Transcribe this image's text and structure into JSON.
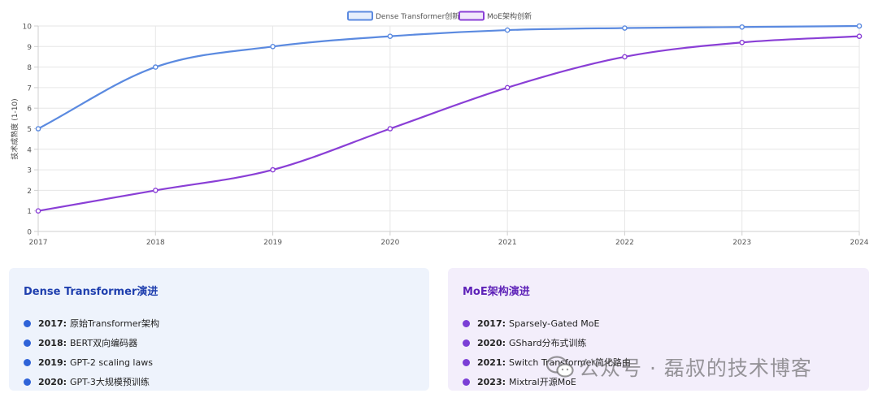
{
  "chart_data": {
    "type": "line",
    "ylabel": "技术成熟度 (1-10)",
    "xlabel": "",
    "x": [
      "2017",
      "2018",
      "2019",
      "2020",
      "2021",
      "2022",
      "2023",
      "2024"
    ],
    "ylim": [
      0,
      10
    ],
    "yticks": [
      0,
      1,
      2,
      3,
      4,
      5,
      6,
      7,
      8,
      9,
      10
    ],
    "grid": true,
    "legend_position": "top-center",
    "series": [
      {
        "name": "Dense Transformer创新",
        "color": "#5b8ae0",
        "values": [
          5,
          8,
          9,
          9.5,
          9.8,
          9.9,
          9.95,
          10
        ]
      },
      {
        "name": "MoE架构创新",
        "color": "#8a3fd6",
        "values": [
          1,
          2,
          3,
          5,
          7,
          8.5,
          9.2,
          9.5
        ]
      }
    ]
  },
  "cards": {
    "dense": {
      "title": "Dense Transformer演进",
      "items": [
        {
          "year": "2017:",
          "text": "原始Transformer架构"
        },
        {
          "year": "2018:",
          "text": "BERT双向编码器"
        },
        {
          "year": "2019:",
          "text": "GPT-2 scaling laws"
        },
        {
          "year": "2020:",
          "text": "GPT-3大规模预训练"
        }
      ]
    },
    "moe": {
      "title": "MoE架构演进",
      "items": [
        {
          "year": "2017:",
          "text": "Sparsely-Gated MoE"
        },
        {
          "year": "2020:",
          "text": "GShard分布式训练"
        },
        {
          "year": "2021:",
          "text": "Switch Transformer简化路由"
        },
        {
          "year": "2023:",
          "text": "Mixtral开源MoE"
        }
      ]
    }
  },
  "watermark": {
    "text": "公众号 · 磊叔的技术博客",
    "icon": "wechat-icon"
  }
}
